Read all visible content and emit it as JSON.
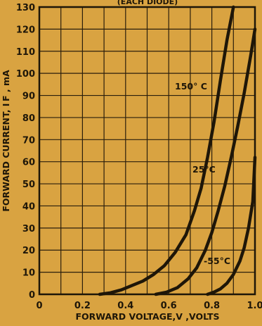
{
  "chart_data": {
    "type": "line",
    "title": "(EACH DIODE)",
    "xlabel": "FORWARD VOLTAGE,V ,VOLTS",
    "ylabel": "FORWARD CURRENT, I F , mA",
    "xlim": [
      0,
      1.0
    ],
    "ylim": [
      0,
      130
    ],
    "x_ticks": [
      "0",
      "0.2",
      "0.4",
      "0.6",
      "0.8",
      "1.0"
    ],
    "y_ticks": [
      "0",
      "10",
      "20",
      "30",
      "40",
      "50",
      "60",
      "70",
      "80",
      "90",
      "100",
      "110",
      "120",
      "130"
    ],
    "grid": true,
    "series": [
      {
        "name": "150° C",
        "x": [
          0.28,
          0.33,
          0.38,
          0.43,
          0.48,
          0.53,
          0.58,
          0.63,
          0.68,
          0.72,
          0.75,
          0.78,
          0.81,
          0.84,
          0.87,
          0.9
        ],
        "y": [
          0,
          0.7,
          2,
          4,
          6,
          9,
          13,
          19,
          27,
          38,
          48,
          62,
          78,
          97,
          115,
          130
        ]
      },
      {
        "name": "25°C",
        "x": [
          0.54,
          0.59,
          0.64,
          0.69,
          0.73,
          0.77,
          0.8,
          0.83,
          0.86,
          0.89,
          0.92,
          0.95,
          0.98,
          1.0
        ],
        "y": [
          0,
          1,
          3,
          7,
          12,
          20,
          28,
          38,
          49,
          62,
          76,
          91,
          108,
          120
        ]
      },
      {
        "name": "-55°C",
        "x": [
          0.78,
          0.81,
          0.84,
          0.87,
          0.9,
          0.93,
          0.95,
          0.97,
          0.99,
          1.0
        ],
        "y": [
          0,
          1,
          2.5,
          5,
          9,
          15,
          21,
          30,
          42,
          62
        ]
      }
    ]
  },
  "style": {
    "background": "#d9a341",
    "ink": "#1e1608",
    "grid": "#2a1e0c"
  }
}
